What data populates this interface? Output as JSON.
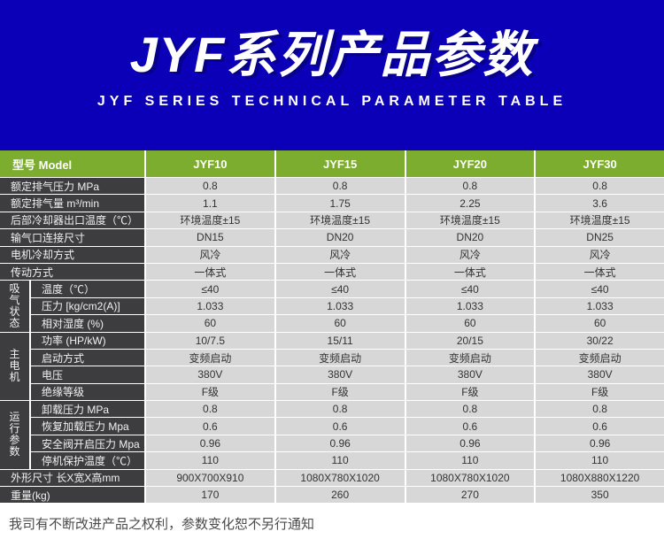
{
  "banner": {
    "title": "JYF系列产品参数",
    "subtitle": "JYF SERIES TECHNICAL PARAMETER TABLE"
  },
  "colors": {
    "banner_blue": "#0b00b8",
    "header_green": "#7cad2f",
    "label_dark": "#3d3d3f",
    "cell_gray": "#d7d7d7"
  },
  "table": {
    "header_label": "型号 Model",
    "columns": [
      "JYF10",
      "JYF15",
      "JYF20",
      "JYF30"
    ],
    "groups": {
      "intake": "吸气状态",
      "motor": "主电机",
      "running": "运行参数"
    },
    "rows": [
      {
        "label": "额定排气压力 MPa",
        "values": [
          "0.8",
          "0.8",
          "0.8",
          "0.8"
        ]
      },
      {
        "label": "额定排气量 m³/min",
        "values": [
          "1.1",
          "1.75",
          "2.25",
          "3.6"
        ]
      },
      {
        "label": "后部冷却器出口温度（℃）",
        "values": [
          "环境温度±15",
          "环境温度±15",
          "环境温度±15",
          "环境温度±15"
        ]
      },
      {
        "label": "输气口连接尺寸",
        "values": [
          "DN15",
          "DN20",
          "DN20",
          "DN25"
        ]
      },
      {
        "label": "电机冷却方式",
        "values": [
          "风冷",
          "风冷",
          "风冷",
          "风冷"
        ]
      },
      {
        "label": "传动方式",
        "values": [
          "一体式",
          "一体式",
          "一体式",
          "一体式"
        ]
      },
      {
        "label": "温度（℃）",
        "values": [
          "≤40",
          "≤40",
          "≤40",
          "≤40"
        ]
      },
      {
        "label": "压力 [kg/cm2(A)]",
        "values": [
          "1.033",
          "1.033",
          "1.033",
          "1.033"
        ]
      },
      {
        "label": "相对湿度 (%)",
        "values": [
          "60",
          "60",
          "60",
          "60"
        ]
      },
      {
        "label": "功率 (HP/kW)",
        "values": [
          "10/7.5",
          "15/11",
          "20/15",
          "30/22"
        ]
      },
      {
        "label": "启动方式",
        "values": [
          "变频启动",
          "变频启动",
          "变频启动",
          "变频启动"
        ]
      },
      {
        "label": "电压",
        "values": [
          "380V",
          "380V",
          "380V",
          "380V"
        ]
      },
      {
        "label": "绝缘等级",
        "values": [
          "F级",
          "F级",
          "F级",
          "F级"
        ]
      },
      {
        "label": "卸载压力 MPa",
        "values": [
          "0.8",
          "0.8",
          "0.8",
          "0.8"
        ]
      },
      {
        "label": "恢复加载压力 Mpa",
        "values": [
          "0.6",
          "0.6",
          "0.6",
          "0.6"
        ]
      },
      {
        "label": "安全阀开启压力 Mpa",
        "values": [
          "0.96",
          "0.96",
          "0.96",
          "0.96"
        ]
      },
      {
        "label": "停机保护温度（℃）",
        "values": [
          "110",
          "110",
          "110",
          "110"
        ]
      },
      {
        "label": "外形尺寸 长X宽X高mm",
        "values": [
          "900X700X910",
          "1080X780X1020",
          "1080X780X1020",
          "1080X880X1220"
        ]
      },
      {
        "label": "重量(kg)",
        "values": [
          "170",
          "260",
          "270",
          "350"
        ]
      }
    ]
  },
  "footer": {
    "note": "我司有不断改进产品之权利，参数变化恕不另行通知"
  }
}
